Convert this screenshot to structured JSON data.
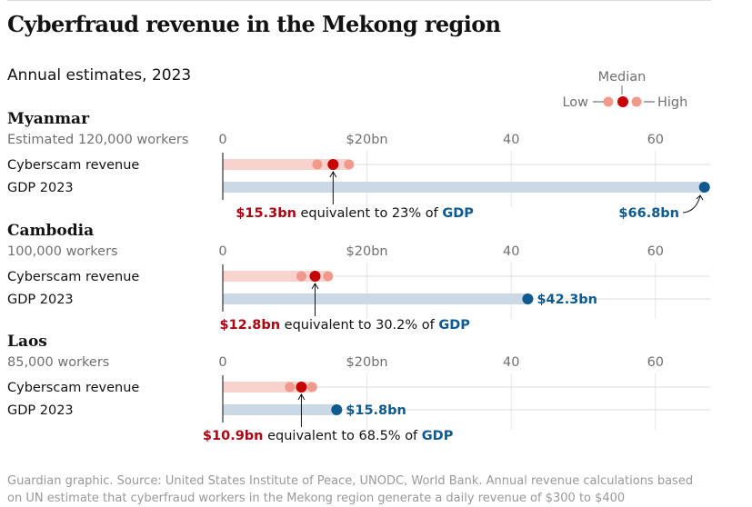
{
  "chart_data": {
    "type": "dot-range",
    "title": "Cyberfraud revenue in the Mekong region",
    "subtitle": "Annual estimates, 2023",
    "unit": "$bn",
    "xlim": [
      0,
      68
    ],
    "ticks": [
      {
        "value": 0,
        "label": "0"
      },
      {
        "value": 20,
        "label": "$20bn"
      },
      {
        "value": 40,
        "label": "40"
      },
      {
        "value": 60,
        "label": "60"
      }
    ],
    "legend": {
      "median": "Median",
      "low": "Low",
      "high": "High"
    },
    "row_labels": {
      "revenue": "Cyberscam revenue",
      "gdp": "GDP 2023"
    },
    "countries": [
      {
        "name": "Myanmar",
        "workers": "Estimated 120,000 workers",
        "revenue_low": 13.1,
        "revenue_median": 15.3,
        "revenue_high": 17.5,
        "gdp": 66.8,
        "revenue_label": "$15.3bn",
        "equivalent_text": " equivalent to 23% of ",
        "gdp_word": "GDP",
        "gdp_label": "$66.8bn"
      },
      {
        "name": "Cambodia",
        "workers": "100,000 workers",
        "revenue_low": 10.9,
        "revenue_median": 12.8,
        "revenue_high": 14.6,
        "gdp": 42.3,
        "revenue_label": "$12.8bn",
        "equivalent_text": " equivalent to 30.2% of ",
        "gdp_word": "GDP",
        "gdp_label": "$42.3bn"
      },
      {
        "name": "Laos",
        "workers": "85,000 workers",
        "revenue_low": 9.3,
        "revenue_median": 10.9,
        "revenue_high": 12.4,
        "gdp": 15.8,
        "revenue_label": "$10.9bn",
        "equivalent_text": " equivalent to 68.5% of ",
        "gdp_word": "GDP",
        "gdp_label": "$15.8bn"
      }
    ],
    "source_line1": "Guardian graphic. Source: United States Institute of Peace, UNODC, World Bank. Annual revenue calculations based",
    "source_line2": "on UN estimate that cyberfraud workers in the Mekong region generate a daily revenue of $300 to $400"
  }
}
